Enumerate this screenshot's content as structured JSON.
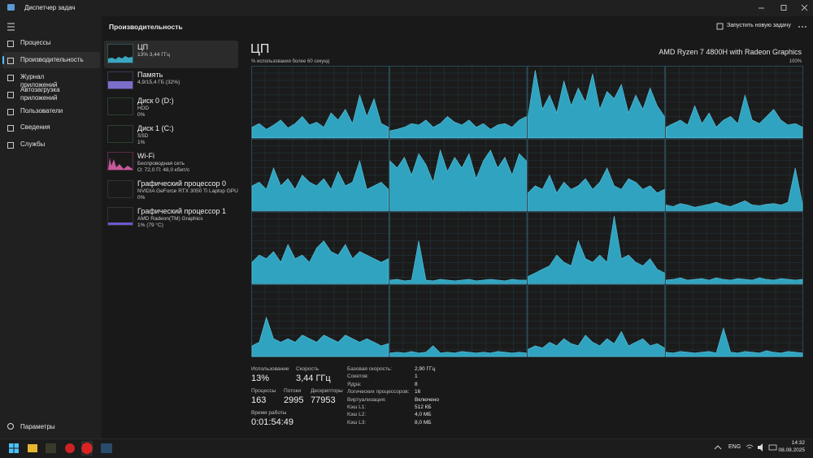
{
  "window": {
    "title": "Диспетчер задач"
  },
  "nav": {
    "items": [
      "Процессы",
      "Производительность",
      "Журнал приложений",
      "Автозагрузка приложений",
      "Пользователи",
      "Сведения",
      "Службы"
    ],
    "settings": "Параметры"
  },
  "header": {
    "title": "Производительность",
    "run_task": "Запустить новую задачу"
  },
  "devices": [
    {
      "name": "ЦП",
      "detail1": "13% 3,44 ГГц"
    },
    {
      "name": "Память",
      "detail1": "4,9/15,4 ГБ (32%)"
    },
    {
      "name": "Диск 0 (D:)",
      "detail1": "HDD",
      "detail2": "0%"
    },
    {
      "name": "Диск 1 (C:)",
      "detail1": "SSD",
      "detail2": "1%"
    },
    {
      "name": "Wi-Fi",
      "detail1": "Беспроводная сеть",
      "detail2": "О: 72,0 П: 48,0 кбит/с"
    },
    {
      "name": "Графический процессор 0",
      "detail1": "NVIDIA GeForce RTX 3050 Ti Laptop GPU",
      "detail2": "0%"
    },
    {
      "name": "Графический процессор 1",
      "detail1": "AMD Radeon(TM) Graphics",
      "detail2": "1% (79 °C)"
    }
  ],
  "cpu": {
    "title": "ЦП",
    "model": "AMD Ryzen 7 4800H with Radeon Graphics",
    "graph_caption": "% использования более 60 секунд",
    "graph_max": "100%",
    "cores": [
      [
        15,
        20,
        12,
        18,
        25,
        14,
        20,
        30,
        18,
        22,
        15,
        35,
        25,
        40,
        20,
        60,
        30,
        55,
        20,
        15
      ],
      [
        10,
        12,
        15,
        20,
        18,
        25,
        15,
        20,
        30,
        22,
        18,
        25,
        15,
        20,
        12,
        18,
        20,
        15,
        25,
        30
      ],
      [
        30,
        95,
        40,
        60,
        35,
        80,
        45,
        70,
        50,
        90,
        40,
        65,
        55,
        75,
        35,
        60,
        40,
        70,
        45,
        30
      ],
      [
        15,
        20,
        25,
        18,
        45,
        20,
        35,
        15,
        25,
        30,
        20,
        60,
        25,
        20,
        30,
        40,
        25,
        18,
        20,
        15
      ],
      [
        35,
        40,
        30,
        60,
        35,
        45,
        30,
        50,
        40,
        35,
        45,
        30,
        55,
        35,
        40,
        70,
        30,
        35,
        40,
        30
      ],
      [
        70,
        60,
        75,
        50,
        80,
        65,
        40,
        85,
        55,
        75,
        60,
        80,
        45,
        70,
        85,
        60,
        75,
        50,
        80,
        70
      ],
      [
        25,
        35,
        30,
        50,
        25,
        40,
        30,
        35,
        45,
        30,
        40,
        60,
        35,
        30,
        45,
        40,
        30,
        35,
        25,
        30
      ],
      [
        8,
        6,
        10,
        8,
        5,
        7,
        9,
        12,
        8,
        6,
        10,
        14,
        8,
        7,
        9,
        10,
        8,
        12,
        60,
        10
      ],
      [
        30,
        40,
        35,
        45,
        30,
        55,
        35,
        40,
        30,
        50,
        60,
        45,
        40,
        55,
        35,
        45,
        40,
        35,
        30,
        35
      ],
      [
        5,
        6,
        4,
        5,
        60,
        5,
        4,
        6,
        5,
        4,
        5,
        6,
        4,
        5,
        6,
        5,
        4,
        6,
        5,
        5
      ],
      [
        10,
        15,
        20,
        25,
        40,
        30,
        25,
        60,
        35,
        30,
        40,
        30,
        95,
        35,
        40,
        30,
        25,
        35,
        20,
        15
      ],
      [
        5,
        6,
        8,
        5,
        6,
        7,
        5,
        8,
        6,
        5,
        7,
        6,
        5,
        8,
        6,
        5,
        7,
        6,
        5,
        6
      ],
      [
        15,
        20,
        55,
        25,
        20,
        25,
        20,
        30,
        25,
        20,
        30,
        25,
        20,
        30,
        25,
        20,
        25,
        20,
        15,
        18
      ],
      [
        5,
        6,
        5,
        7,
        5,
        6,
        15,
        5,
        6,
        5,
        7,
        6,
        5,
        6,
        5,
        7,
        6,
        5,
        6,
        5
      ],
      [
        10,
        15,
        12,
        20,
        15,
        25,
        18,
        15,
        30,
        20,
        15,
        25,
        18,
        35,
        15,
        20,
        25,
        15,
        18,
        12
      ],
      [
        6,
        5,
        7,
        6,
        5,
        6,
        7,
        5,
        40,
        6,
        5,
        7,
        6,
        5,
        8,
        6,
        5,
        7,
        6,
        5
      ]
    ]
  },
  "stats": [
    {
      "label": "Использование",
      "value": "13%"
    },
    {
      "label": "Скорость",
      "value": "3,44 ГГц"
    },
    {
      "label": "Процессы",
      "value": "163"
    },
    {
      "label": "Потоки",
      "value": "2995"
    },
    {
      "label": "Дескрипторы",
      "value": "77953"
    },
    {
      "label": "Время работы",
      "value": "0:01:54:49"
    }
  ],
  "specs": [
    [
      "Базовая скорость:",
      "2,90 ГГц"
    ],
    [
      "Сокетов:",
      "1"
    ],
    [
      "Ядра:",
      "8"
    ],
    [
      "Логических процессоров:",
      "16"
    ],
    [
      "Виртуализация:",
      "Включено"
    ],
    [
      "Кэш L1:",
      "512 КБ"
    ],
    [
      "Кэш L2:",
      "4,0 МБ"
    ],
    [
      "Кэш L3:",
      "8,0 МБ"
    ]
  ],
  "taskbar": {
    "lang": "ENG",
    "time": "14:32",
    "date": "08.08.2025"
  }
}
